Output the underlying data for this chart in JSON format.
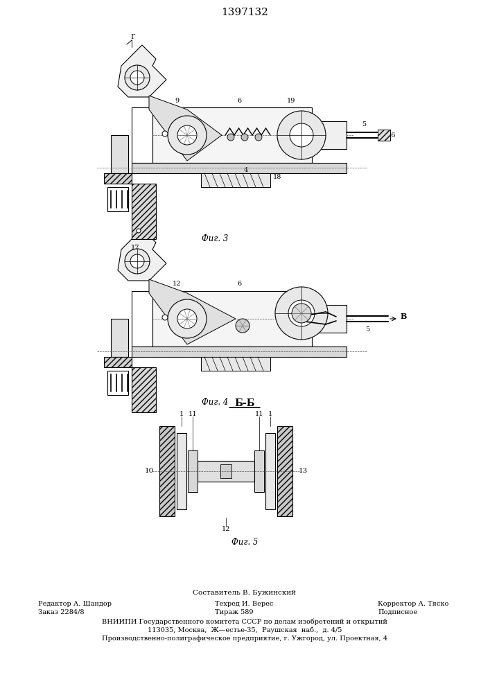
{
  "title": "1397132",
  "bg_color": "#ffffff",
  "fig3_caption": "Фиг. 3",
  "fig4_caption": "Фиг. 4",
  "fig5_caption": "Фиг. 5",
  "section_label": "Б-Б",
  "footer_line1": "Составитель В. Бужинский",
  "footer_left1": "Редактор А. Шандор",
  "footer_left2": "Заказ 2284/8",
  "footer_center1": "Техред И. Верес",
  "footer_center2": "Тираж 589",
  "footer_right1": "Корректор А. Тяско",
  "footer_right2": "Подписное",
  "footer_org": "ВНИИПИ Государственного комитета СССР по делам изобретений и открытий",
  "footer_addr1": "113035, Москва,  Ж—естье-35,  Раушская  наб.,  д. 4/5",
  "footer_addr2": "Производственно-полиграфическое предприятие, г. Ужгород, ул. Проектная, 4",
  "fig_width": 7.07,
  "fig_height": 10.0,
  "dpi": 100
}
